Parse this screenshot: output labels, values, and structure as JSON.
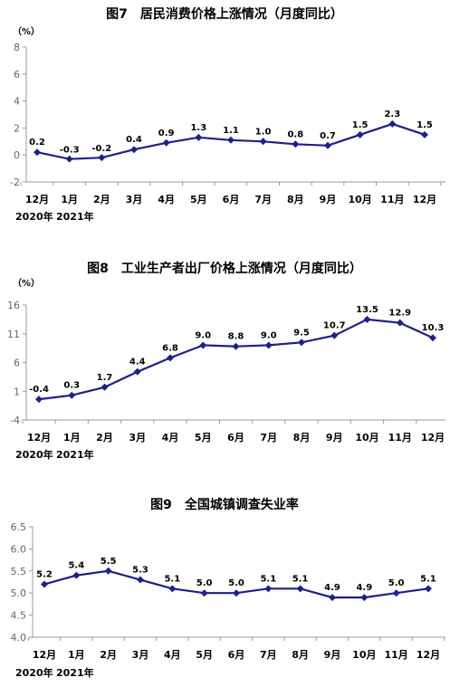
{
  "chart_data": [
    {
      "type": "line",
      "title": "图7　居民消费价格上涨情况（月度同比）",
      "unit": "（%）",
      "categories": [
        "12月",
        "1月",
        "2月",
        "3月",
        "4月",
        "5月",
        "6月",
        "7月",
        "8月",
        "9月",
        "10月",
        "11月",
        "12月"
      ],
      "year_labels": [
        "2020年",
        "2021年"
      ],
      "values": [
        0.2,
        -0.3,
        -0.2,
        0.4,
        0.9,
        1.3,
        1.1,
        1.0,
        0.8,
        0.7,
        1.5,
        2.3,
        1.5
      ],
      "data_labels": [
        "0.2",
        "-0.3",
        "-0.2",
        "0.4",
        "0.9",
        "1.3",
        "1.1",
        "1.0",
        "0.8",
        "0.7",
        "1.5",
        "2.3",
        "1.5"
      ],
      "ylim": [
        -2,
        8
      ],
      "yticks": [
        -2,
        0,
        2,
        4,
        6,
        8
      ],
      "ytick_labels": [
        "-2",
        "0",
        "2",
        "4",
        "6",
        "8"
      ],
      "color": "#1f1f8a"
    },
    {
      "type": "line",
      "title": "图8　工业生产者出厂价格上涨情况（月度同比）",
      "unit": "（%）",
      "categories": [
        "12月",
        "1月",
        "2月",
        "3月",
        "4月",
        "5月",
        "6月",
        "7月",
        "8月",
        "9月",
        "10月",
        "11月",
        "12月"
      ],
      "year_labels": [
        "2020年",
        "2021年"
      ],
      "values": [
        -0.4,
        0.3,
        1.7,
        4.4,
        6.8,
        9.0,
        8.8,
        9.0,
        9.5,
        10.7,
        13.5,
        12.9,
        10.3
      ],
      "data_labels": [
        "-0.4",
        "0.3",
        "1.7",
        "4.4",
        "6.8",
        "9.0",
        "8.8",
        "9.0",
        "9.5",
        "10.7",
        "13.5",
        "12.9",
        "10.3"
      ],
      "ylim": [
        -4,
        16
      ],
      "yticks": [
        -4,
        1,
        6,
        11,
        16
      ],
      "ytick_labels": [
        "-4",
        "1",
        "6",
        "11",
        "16"
      ],
      "color": "#1f1f8a"
    },
    {
      "type": "line",
      "title": "图9　全国城镇调查失业率",
      "unit": "",
      "categories": [
        "12月",
        "1月",
        "2月",
        "3月",
        "4月",
        "5月",
        "6月",
        "7月",
        "8月",
        "9月",
        "10月",
        "11月",
        "12月"
      ],
      "year_labels": [
        "2020年",
        "2021年"
      ],
      "values": [
        5.2,
        5.4,
        5.5,
        5.3,
        5.1,
        5.0,
        5.0,
        5.1,
        5.1,
        4.9,
        4.9,
        5.0,
        5.1
      ],
      "data_labels": [
        "5.2",
        "5.4",
        "5.5",
        "5.3",
        "5.1",
        "5.0",
        "5.0",
        "5.1",
        "5.1",
        "4.9",
        "4.9",
        "5.0",
        "5.1"
      ],
      "ylim": [
        4.0,
        6.5
      ],
      "yticks": [
        4.0,
        4.5,
        5.0,
        5.5,
        6.0,
        6.5
      ],
      "ytick_labels": [
        "4.0",
        "4.5",
        "5.0",
        "5.5",
        "6.0",
        "6.5"
      ],
      "color": "#1f1f8a"
    }
  ]
}
